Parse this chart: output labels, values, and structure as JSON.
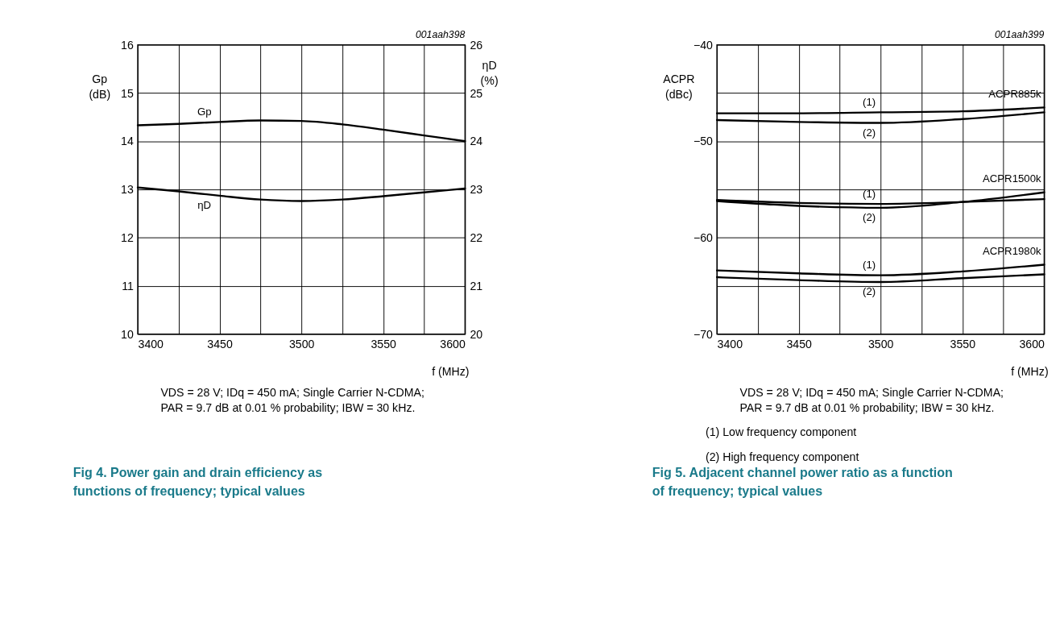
{
  "chart_data": [
    {
      "type": "line",
      "title": "Fig 4.   Power gain and drain efficiency as functions of frequency; typical values",
      "xlabel": "f (MHz)",
      "ylabel": "Gp (dB)",
      "y2label": "ηD (%)",
      "x": [
        3400,
        3425,
        3450,
        3475,
        3500,
        3525,
        3550,
        3575,
        3600
      ],
      "series": [
        {
          "name": "Gp",
          "color": "#000000",
          "values": [
            14.33,
            14.36,
            14.4,
            14.43,
            14.42,
            14.35,
            14.24,
            14.12,
            14.0
          ]
        },
        {
          "name": "ηD",
          "color": "#000000",
          "axis": "y2",
          "values": [
            23.04,
            22.96,
            22.87,
            22.79,
            22.76,
            22.79,
            22.86,
            22.94,
            23.02
          ]
        }
      ],
      "xlim": [
        3400,
        3600
      ],
      "xticks": [
        3400,
        {
          "value": 3425,
          "label": null
        },
        3450,
        {
          "value": 3475,
          "label": null
        },
        3500,
        {
          "value": 3525,
          "label": null
        },
        3550,
        {
          "value": 3575,
          "label": null
        },
        3600
      ],
      "ylim": [
        10,
        16
      ],
      "yticks": [
        10,
        11,
        12,
        13,
        14,
        15,
        16
      ],
      "y2lim": [
        20,
        26
      ],
      "y2ticks": [
        20,
        21,
        22,
        23,
        24,
        25,
        26
      ],
      "grid": true,
      "legend": false,
      "line_style": "solid",
      "marker": "none",
      "annotations": [
        "001aah398",
        "VDS = 28 V; IDq = 450 mA; Single Carrier N-CDMA;",
        "PAR = 9.7 dB at 0.01 % probability; IBW = 30 kHz."
      ]
    },
    {
      "type": "line",
      "title": "Fig 5.   Adjacent channel power ratio as a function of frequency; typical values",
      "xlabel": "f (MHz)",
      "ylabel": "ACPR (dBc)",
      "x": [
        3400,
        3450,
        3500,
        3550,
        3600
      ],
      "series": [
        {
          "name": "(1)",
          "color": "#000000",
          "values": [
            -47.1,
            -47.1,
            -47.0,
            -46.9,
            -46.5
          ]
        },
        {
          "name": "(2)",
          "color": "#000000",
          "values": [
            -47.8,
            -48.0,
            -48.1,
            -47.7,
            -47.0
          ]
        },
        {
          "name": "(1)",
          "color": "#000000",
          "values": [
            -56.1,
            -56.4,
            -56.5,
            -56.3,
            -56.0
          ]
        },
        {
          "name": "(2)",
          "color": "#000000",
          "values": [
            -56.2,
            -56.7,
            -56.9,
            -56.3,
            -55.3
          ]
        },
        {
          "name": "(1)",
          "color": "#000000",
          "values": [
            -63.4,
            -63.7,
            -63.9,
            -63.5,
            -62.8
          ]
        },
        {
          "name": "(2)",
          "color": "#000000",
          "values": [
            -64.1,
            -64.4,
            -64.6,
            -64.2,
            -63.8
          ]
        }
      ],
      "xlim": [
        3400,
        3600
      ],
      "xticks": [
        3400,
        {
          "value": 3425,
          "label": null
        },
        3450,
        {
          "value": 3475,
          "label": null
        },
        3500,
        {
          "value": 3525,
          "label": null
        },
        3550,
        {
          "value": 3575,
          "label": null
        },
        3600
      ],
      "ylim": [
        -70,
        -40
      ],
      "yticks": [
        -70,
        {
          "value": -65,
          "label": null
        },
        -60,
        {
          "value": -55,
          "label": null
        },
        -50,
        {
          "value": -45,
          "label": null
        },
        -40
      ],
      "grid": true,
      "legend": false,
      "line_style": "solid",
      "marker": "none",
      "annotations": [
        "001aah399",
        "VDS = 28 V; IDq = 450 mA; Single Carrier N-CDMA;",
        "PAR = 9.7 dB at 0.01 % probability; IBW = 30 kHz.",
        "(1)  Low frequency component",
        "(2)  High frequency component",
        "ACPR885k",
        "ACPR1500k",
        "ACPR1980k"
      ]
    }
  ]
}
